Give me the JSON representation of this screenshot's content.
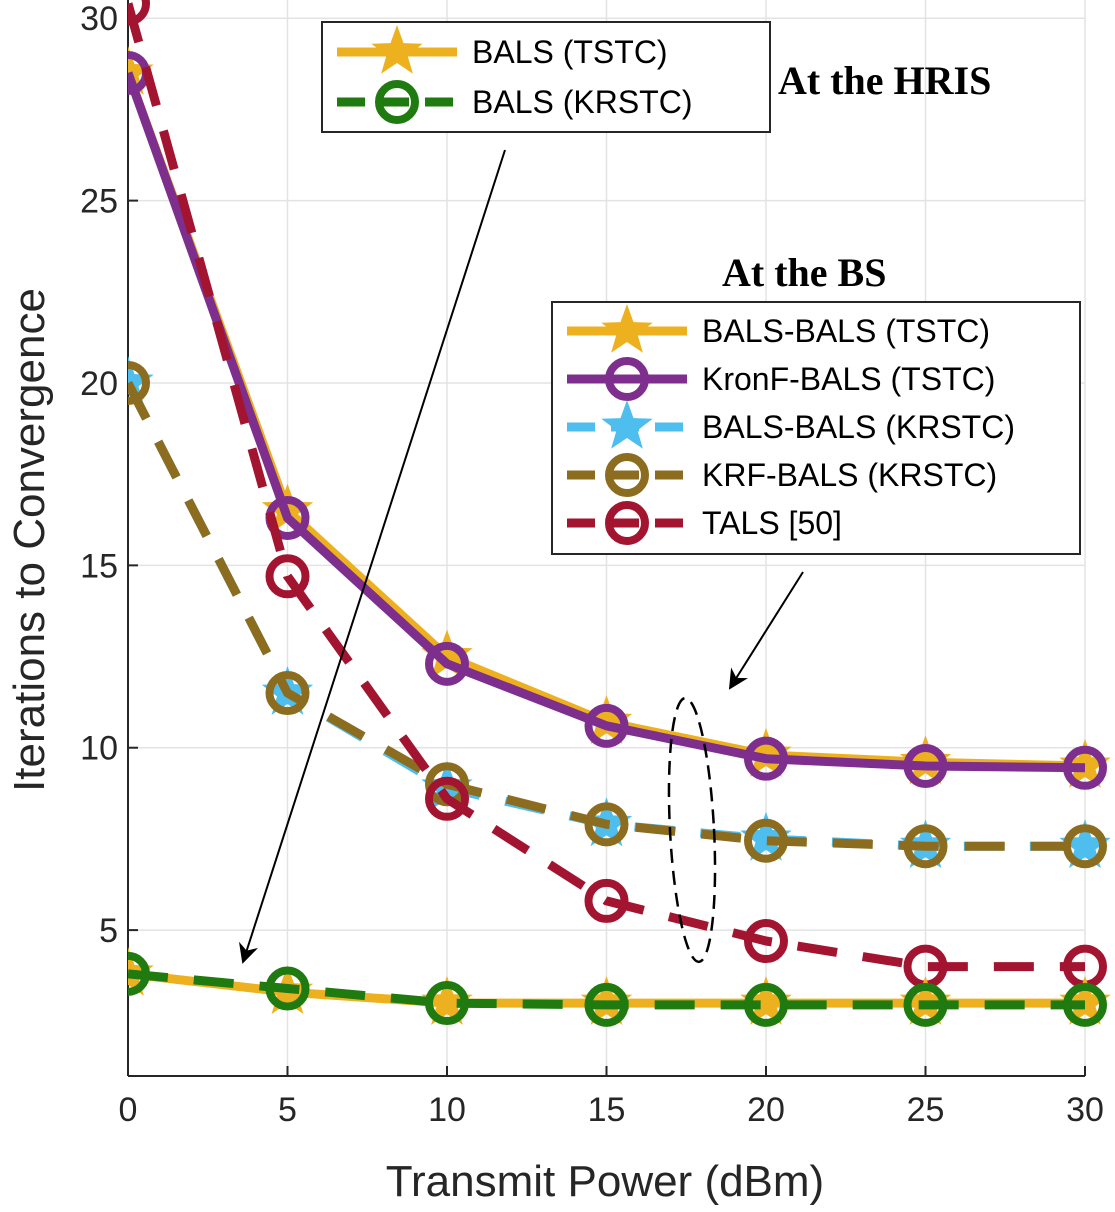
{
  "chart_data": {
    "type": "line",
    "xlabel": "Transmit Power (dBm)",
    "ylabel": "Iterations to Convergence",
    "x": [
      0,
      5,
      10,
      15,
      20,
      25,
      30
    ],
    "xlim": [
      0,
      30
    ],
    "ylim": [
      1,
      30.5
    ],
    "xticks": [
      "0",
      "5",
      "10",
      "15",
      "20",
      "25",
      "30"
    ],
    "yticks": [
      "5",
      "10",
      "15",
      "20",
      "25",
      "30"
    ],
    "grid": true,
    "series": [
      {
        "name": "BALS-BALS (TSTC)",
        "group": "bs",
        "values": [
          28.5,
          16.5,
          12.5,
          10.7,
          9.8,
          9.6,
          9.5
        ],
        "color": "#EDB120",
        "marker": "star",
        "dash": "solid"
      },
      {
        "name": "KronF-BALS (TSTC)",
        "group": "bs",
        "values": [
          28.5,
          16.3,
          12.3,
          10.6,
          9.7,
          9.5,
          9.45
        ],
        "color": "#7E2F8E",
        "marker": "circle",
        "dash": "solid"
      },
      {
        "name": "BALS-BALS (KRSTC)",
        "group": "bs",
        "values": [
          20.0,
          11.5,
          8.9,
          7.9,
          7.5,
          7.3,
          7.3
        ],
        "color": "#4DBEEE",
        "marker": "star",
        "dash": "dashed"
      },
      {
        "name": "KRF-BALS (KRSTC)",
        "group": "bs",
        "values": [
          20.0,
          11.5,
          9.0,
          7.9,
          7.45,
          7.3,
          7.3
        ],
        "color": "#8C6D1F",
        "marker": "circle",
        "dash": "dashed"
      },
      {
        "name": "TALS [50]",
        "group": "bs",
        "values": [
          30.4,
          14.7,
          8.6,
          5.8,
          4.7,
          4.0,
          4.0
        ],
        "color": "#A2142F",
        "marker": "circle",
        "dash": "dashed"
      },
      {
        "name": "BALS (TSTC)",
        "group": "hris",
        "values": [
          3.8,
          3.3,
          3.0,
          3.0,
          3.0,
          3.0,
          3.0
        ],
        "color": "#EDB120",
        "marker": "star",
        "dash": "solid"
      },
      {
        "name": "BALS (KRSTC)",
        "group": "hris",
        "values": [
          3.8,
          3.4,
          3.0,
          2.95,
          2.95,
          2.95,
          2.95
        ],
        "color": "#1F7A0F",
        "marker": "circle",
        "dash": "dashed"
      }
    ],
    "annotations": {
      "hris": "At the HRIS",
      "bs": "At the BS"
    }
  }
}
